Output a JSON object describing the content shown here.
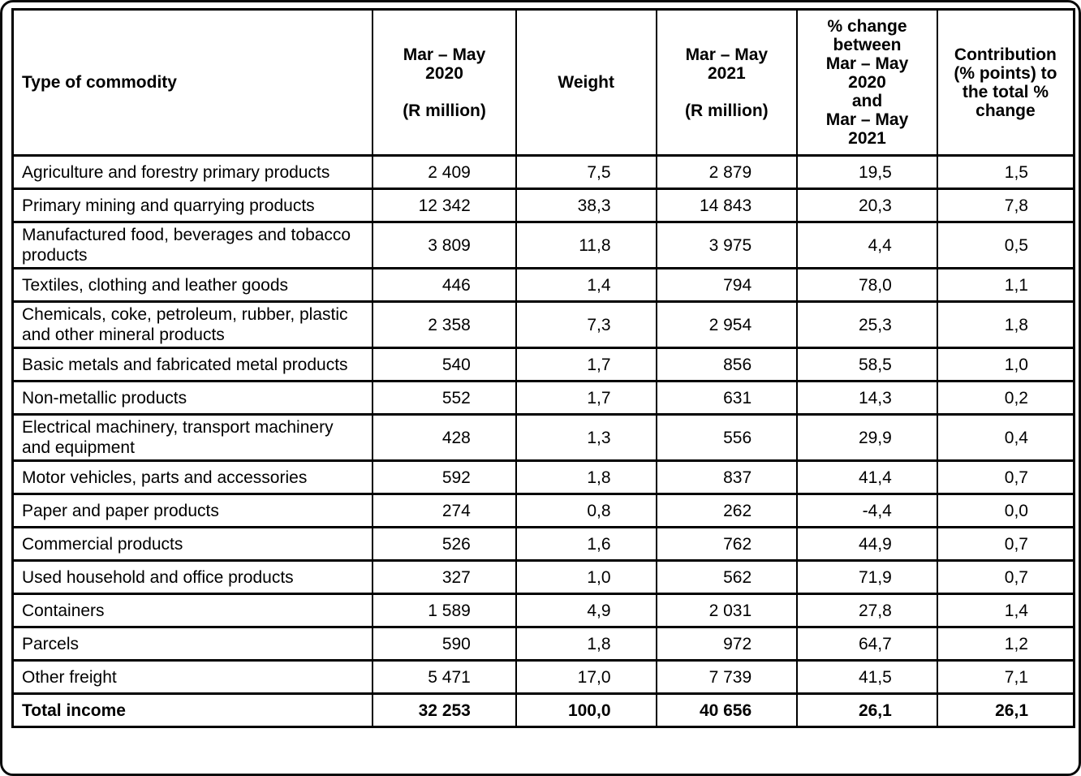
{
  "table": {
    "columns": [
      {
        "key": "commodity",
        "label": "Type of commodity"
      },
      {
        "key": "mar_may_2020",
        "label": "Mar – May\n2020\n\n(R million)"
      },
      {
        "key": "weight",
        "label": "Weight"
      },
      {
        "key": "mar_may_2021",
        "label": "Mar – May\n2021\n\n(R million)"
      },
      {
        "key": "pct_change",
        "label": "% change\nbetween\nMar – May\n2020\nand\nMar – May\n2021"
      },
      {
        "key": "contribution",
        "label": "Contribution\n(% points) to\nthe total %\nchange"
      }
    ],
    "rows": [
      {
        "commodity": "Agriculture and forestry primary products",
        "mar_may_2020": "2 409",
        "weight": "7,5",
        "mar_may_2021": "2 879",
        "pct_change": "19,5",
        "contribution": "1,5"
      },
      {
        "commodity": "Primary mining and quarrying products",
        "mar_may_2020": "12 342",
        "weight": "38,3",
        "mar_may_2021": "14 843",
        "pct_change": "20,3",
        "contribution": "7,8"
      },
      {
        "commodity": "Manufactured food, beverages and tobacco\nproducts",
        "mar_may_2020": "3 809",
        "weight": "11,8",
        "mar_may_2021": "3 975",
        "pct_change": "4,4",
        "contribution": "0,5"
      },
      {
        "commodity": "Textiles, clothing and leather goods",
        "mar_may_2020": "446",
        "weight": "1,4",
        "mar_may_2021": "794",
        "pct_change": "78,0",
        "contribution": "1,1"
      },
      {
        "commodity": "Chemicals, coke, petroleum, rubber, plastic\nand other mineral products",
        "mar_may_2020": "2 358",
        "weight": "7,3",
        "mar_may_2021": "2 954",
        "pct_change": "25,3",
        "contribution": "1,8"
      },
      {
        "commodity": "Basic metals and fabricated metal products",
        "mar_may_2020": "540",
        "weight": "1,7",
        "mar_may_2021": "856",
        "pct_change": "58,5",
        "contribution": "1,0"
      },
      {
        "commodity": "Non-metallic products",
        "mar_may_2020": "552",
        "weight": "1,7",
        "mar_may_2021": "631",
        "pct_change": "14,3",
        "contribution": "0,2"
      },
      {
        "commodity": "Electrical machinery, transport machinery\nand equipment",
        "mar_may_2020": "428",
        "weight": "1,3",
        "mar_may_2021": "556",
        "pct_change": "29,9",
        "contribution": "0,4"
      },
      {
        "commodity": "Motor vehicles, parts and accessories",
        "mar_may_2020": "592",
        "weight": "1,8",
        "mar_may_2021": "837",
        "pct_change": "41,4",
        "contribution": "0,7"
      },
      {
        "commodity": "Paper and paper products",
        "mar_may_2020": "274",
        "weight": "0,8",
        "mar_may_2021": "262",
        "pct_change": "-4,4",
        "contribution": "0,0"
      },
      {
        "commodity": "Commercial products",
        "mar_may_2020": "526",
        "weight": "1,6",
        "mar_may_2021": "762",
        "pct_change": "44,9",
        "contribution": "0,7"
      },
      {
        "commodity": "Used household and office products",
        "mar_may_2020": "327",
        "weight": "1,0",
        "mar_may_2021": "562",
        "pct_change": "71,9",
        "contribution": "0,7"
      },
      {
        "commodity": "Containers",
        "mar_may_2020": "1 589",
        "weight": "4,9",
        "mar_may_2021": "2 031",
        "pct_change": "27,8",
        "contribution": "1,4"
      },
      {
        "commodity": "Parcels",
        "mar_may_2020": "590",
        "weight": "1,8",
        "mar_may_2021": "972",
        "pct_change": "64,7",
        "contribution": "1,2"
      },
      {
        "commodity": "Other freight",
        "mar_may_2020": "5 471",
        "weight": "17,0",
        "mar_may_2021": "7 739",
        "pct_change": "41,5",
        "contribution": "7,1"
      },
      {
        "commodity": "Total income",
        "mar_may_2020": "32 253",
        "weight": "100,0",
        "mar_may_2021": "40 656",
        "pct_change": "26,1",
        "contribution": "26,1",
        "total": true
      }
    ],
    "colors": {
      "border": "#000000",
      "text": "#000000",
      "background": "#ffffff"
    }
  }
}
